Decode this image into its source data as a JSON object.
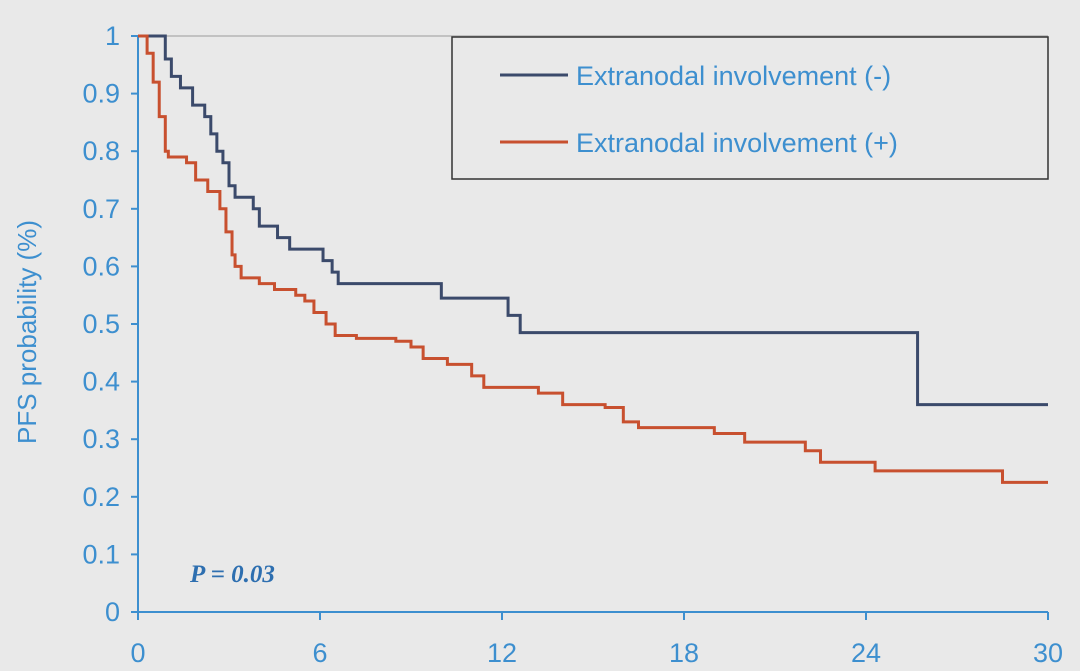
{
  "chart_data": {
    "type": "line",
    "step": true,
    "title": "",
    "xlabel": "",
    "ylabel": "PFS probability (%)",
    "xlim": [
      0,
      30
    ],
    "ylim": [
      0,
      1
    ],
    "x_ticks": [
      0,
      6,
      12,
      18,
      24,
      30
    ],
    "y_ticks": [
      "0",
      "0.1",
      "0.2",
      "0.3",
      "0.4",
      "0.5",
      "0.6",
      "0.7",
      "0.8",
      "0.9",
      "1"
    ],
    "grid": false,
    "legend_position": "top-right",
    "annotation": "P = 0.03",
    "colors": {
      "axis": "#3d8fcf",
      "negative": "#3b4a6b",
      "positive": "#c8502f",
      "annotation": "#2e6fb0",
      "legend_border": "#333333"
    },
    "series": [
      {
        "name": "Extranodal involvement (-)",
        "color": "#3b4a6b",
        "points": [
          [
            0,
            1.0
          ],
          [
            0.9,
            0.96
          ],
          [
            1.1,
            0.93
          ],
          [
            1.4,
            0.91
          ],
          [
            1.8,
            0.88
          ],
          [
            2.2,
            0.86
          ],
          [
            2.4,
            0.83
          ],
          [
            2.6,
            0.8
          ],
          [
            2.8,
            0.78
          ],
          [
            3.0,
            0.74
          ],
          [
            3.2,
            0.72
          ],
          [
            3.8,
            0.7
          ],
          [
            4.0,
            0.67
          ],
          [
            4.6,
            0.65
          ],
          [
            5.0,
            0.63
          ],
          [
            6.1,
            0.61
          ],
          [
            6.4,
            0.59
          ],
          [
            6.6,
            0.57
          ],
          [
            10.0,
            0.545
          ],
          [
            12.2,
            0.515
          ],
          [
            12.6,
            0.485
          ],
          [
            25.7,
            0.36
          ],
          [
            30,
            0.36
          ]
        ]
      },
      {
        "name": "Extranodal involvement (+)",
        "color": "#c8502f",
        "points": [
          [
            0,
            1.0
          ],
          [
            0.3,
            0.97
          ],
          [
            0.5,
            0.92
          ],
          [
            0.7,
            0.86
          ],
          [
            0.9,
            0.8
          ],
          [
            1.0,
            0.79
          ],
          [
            1.6,
            0.78
          ],
          [
            1.9,
            0.75
          ],
          [
            2.3,
            0.73
          ],
          [
            2.7,
            0.7
          ],
          [
            2.9,
            0.66
          ],
          [
            3.1,
            0.62
          ],
          [
            3.2,
            0.6
          ],
          [
            3.4,
            0.58
          ],
          [
            4.0,
            0.57
          ],
          [
            4.5,
            0.56
          ],
          [
            5.2,
            0.55
          ],
          [
            5.5,
            0.54
          ],
          [
            5.8,
            0.52
          ],
          [
            6.2,
            0.5
          ],
          [
            6.5,
            0.48
          ],
          [
            7.2,
            0.475
          ],
          [
            8.5,
            0.47
          ],
          [
            9.0,
            0.46
          ],
          [
            9.4,
            0.44
          ],
          [
            10.2,
            0.43
          ],
          [
            11.0,
            0.41
          ],
          [
            11.4,
            0.39
          ],
          [
            13.2,
            0.38
          ],
          [
            14.0,
            0.36
          ],
          [
            15.4,
            0.355
          ],
          [
            16.0,
            0.33
          ],
          [
            16.5,
            0.32
          ],
          [
            19.0,
            0.31
          ],
          [
            20.0,
            0.295
          ],
          [
            22.0,
            0.28
          ],
          [
            22.5,
            0.26
          ],
          [
            24.3,
            0.245
          ],
          [
            28.5,
            0.225
          ],
          [
            30,
            0.225
          ]
        ]
      }
    ]
  }
}
